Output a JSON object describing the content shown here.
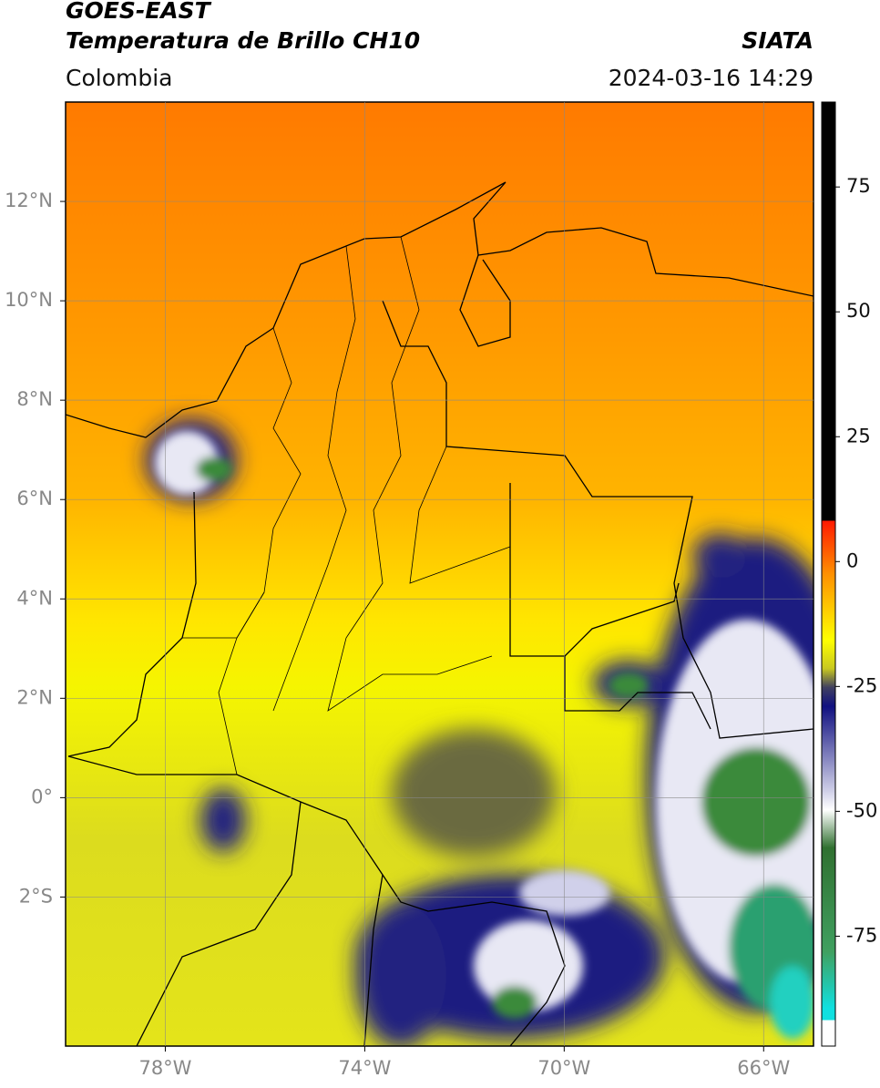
{
  "header": {
    "title": "GOES-EAST",
    "subtitle": "Temperatura de Brillo CH10",
    "source": "SIATA",
    "region": "Colombia",
    "timestamp": "2024-03-16 14:29"
  },
  "map": {
    "lonlim": [
      -80,
      -65
    ],
    "latlim": [
      -5,
      14
    ],
    "lonticks": [
      {
        "value": -78,
        "label": "78°W"
      },
      {
        "value": -74,
        "label": "74°W"
      },
      {
        "value": -70,
        "label": "70°W"
      },
      {
        "value": -66,
        "label": "66°W"
      }
    ],
    "latticks": [
      {
        "value": 12,
        "label": "12°N"
      },
      {
        "value": 10,
        "label": "10°N"
      },
      {
        "value": 8,
        "label": "8°N"
      },
      {
        "value": 6,
        "label": "6°N"
      },
      {
        "value": 4,
        "label": "4°N"
      },
      {
        "value": 2,
        "label": "2°N"
      },
      {
        "value": 0,
        "label": "0°"
      },
      {
        "value": -2,
        "label": "2°S"
      }
    ],
    "grid": true
  },
  "colorbar": {
    "clim": [
      -97,
      92
    ],
    "ticks": [
      75,
      50,
      25,
      0,
      -25,
      -50,
      -75
    ]
  }
}
